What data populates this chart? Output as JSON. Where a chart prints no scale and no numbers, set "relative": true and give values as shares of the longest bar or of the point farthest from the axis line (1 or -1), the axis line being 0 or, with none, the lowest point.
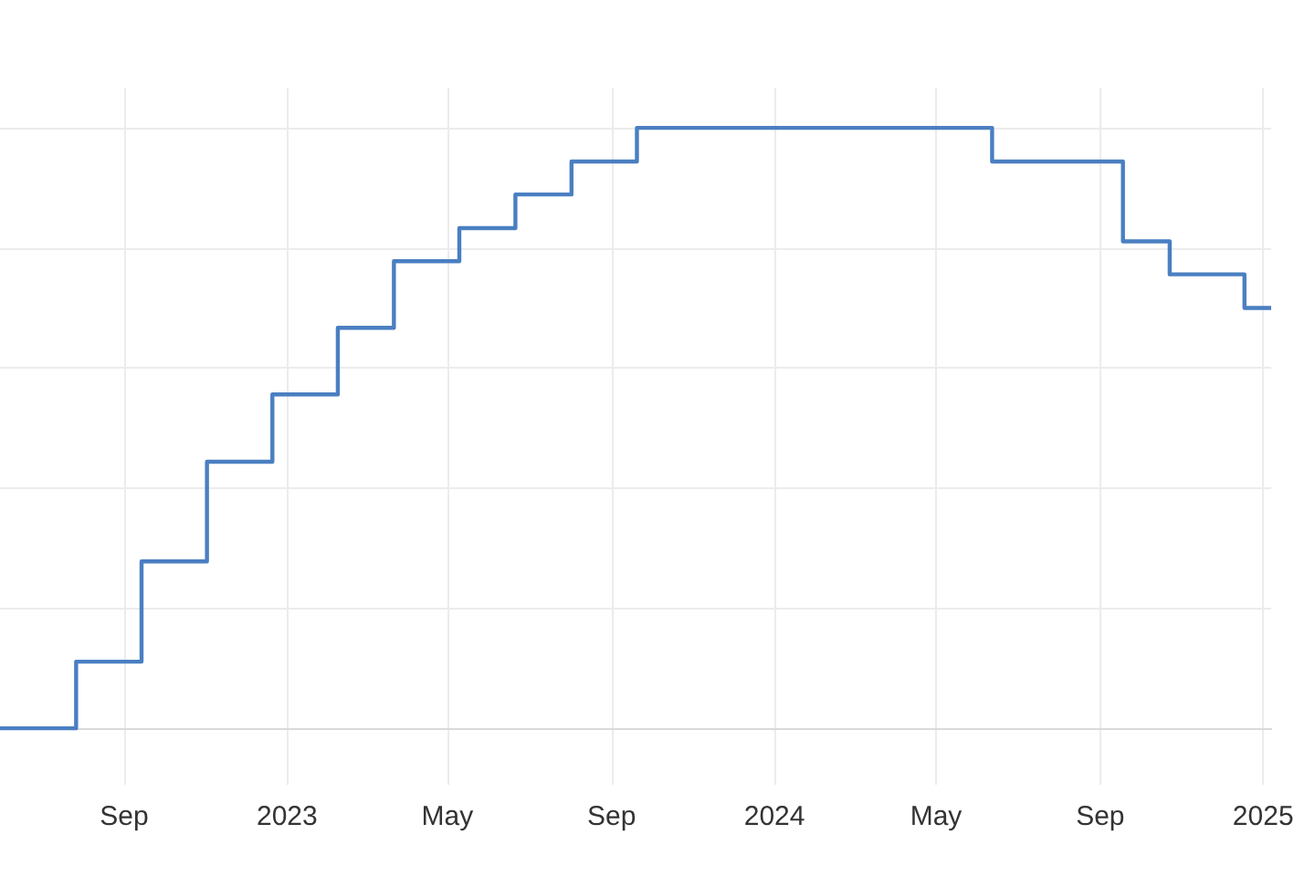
{
  "chart_data": {
    "type": "step",
    "relative": true,
    "grid": true,
    "color": "#4a7fc1",
    "x": [
      "2022-05-31",
      "2022-07-27",
      "2022-09-14",
      "2022-11-02",
      "2022-12-21",
      "2023-02-08",
      "2023-03-22",
      "2023-05-10",
      "2023-06-21",
      "2023-08-02",
      "2023-09-20",
      "2024-06-12",
      "2024-09-18",
      "2024-10-23",
      "2024-12-18",
      "2025-01-07"
    ],
    "values": [
      0,
      0.111,
      0.278,
      0.444,
      0.556,
      0.667,
      0.778,
      0.833,
      0.889,
      0.944,
      1,
      0.944,
      0.811,
      0.756,
      0.7,
      0.7
    ],
    "xlim": [
      "2022-05-31",
      "2025-01-07"
    ],
    "xticks": [
      {
        "value": "2022-09-01",
        "label": "Sep"
      },
      {
        "value": "2023-01-01",
        "label": "2023"
      },
      {
        "value": "2023-05-01",
        "label": "May"
      },
      {
        "value": "2023-09-01",
        "label": "Sep"
      },
      {
        "value": "2024-01-01",
        "label": "2024"
      },
      {
        "value": "2024-05-01",
        "label": "May"
      },
      {
        "value": "2024-09-01",
        "label": "Sep"
      },
      {
        "value": "2025-01-01",
        "label": "2025"
      }
    ]
  }
}
